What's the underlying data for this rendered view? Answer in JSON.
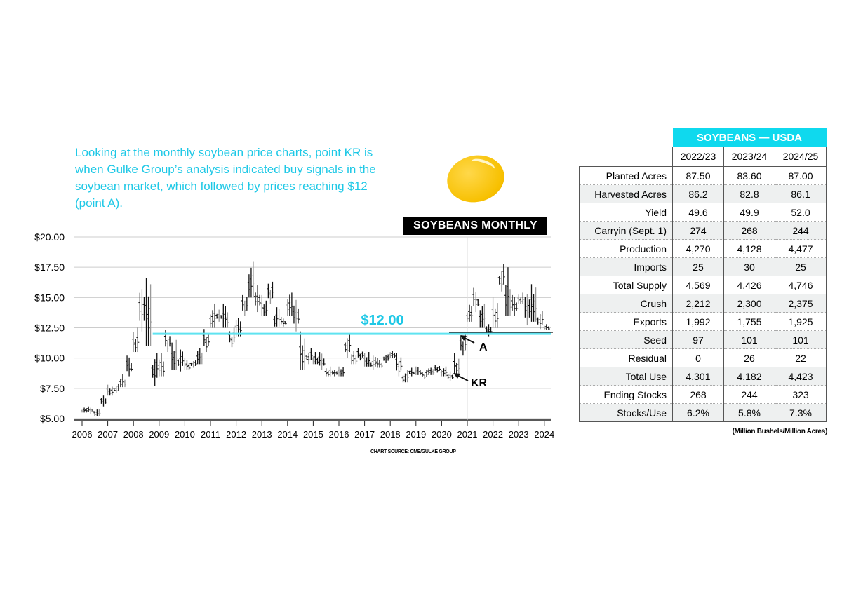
{
  "intro_text": "Looking at the monthly soybean price charts, point KR is when Gulke Group’s analysis indicated buy signals in the soybean market, which followed by prices reaching $12 (point A).",
  "chart_data": {
    "type": "ohlc-bar",
    "title": "SOYBEANS MONTHLY",
    "source": "CHART SOURCE: CME/GULKE GROUP",
    "ylim": [
      5,
      20
    ],
    "yticks": [
      20,
      17.5,
      15,
      12.5,
      10,
      7.5,
      5
    ],
    "ytick_labels": [
      "$20.00",
      "$17.50",
      "$15.00",
      "$12.50",
      "$10.00",
      "$7.50",
      "$5.00"
    ],
    "xlim": [
      2005.7,
      2024.3
    ],
    "xticks": [
      "2006",
      "2007",
      "2008",
      "2009",
      "2010",
      "2011",
      "2012",
      "2013",
      "2014",
      "2015",
      "2016",
      "2017",
      "2018",
      "2019",
      "2020",
      "2021",
      "2022",
      "2023",
      "2024"
    ],
    "grid": true,
    "reference_line": {
      "value": 12,
      "label": "$12.00",
      "color": "#5fe3f0"
    },
    "annotations": [
      {
        "label": "A",
        "x": 2020.9,
        "y": 12.0
      },
      {
        "label": "KR",
        "x": 2020.6,
        "y": 8.6
      }
    ],
    "quarterly_high_low": [
      [
        5.9,
        5.5
      ],
      [
        6.0,
        5.4
      ],
      [
        5.8,
        5.2
      ],
      [
        6.9,
        6.0
      ],
      [
        7.8,
        6.9
      ],
      [
        7.9,
        7.1
      ],
      [
        8.7,
        7.6
      ],
      [
        10.2,
        8.5
      ],
      [
        12.5,
        10.5
      ],
      [
        15.7,
        12.2
      ],
      [
        16.6,
        11.0
      ],
      [
        10.4,
        7.7
      ],
      [
        10.4,
        8.5
      ],
      [
        12.3,
        10.5
      ],
      [
        11.5,
        9.0
      ],
      [
        10.7,
        8.9
      ],
      [
        10.0,
        9.0
      ],
      [
        9.8,
        9.2
      ],
      [
        10.8,
        9.5
      ],
      [
        12.4,
        10.5
      ],
      [
        14.5,
        12.5
      ],
      [
        14.0,
        13.0
      ],
      [
        14.5,
        12.5
      ],
      [
        12.5,
        10.9
      ],
      [
        13.3,
        11.8
      ],
      [
        15.2,
        13.5
      ],
      [
        18.0,
        15.0
      ],
      [
        16.0,
        13.8
      ],
      [
        15.2,
        13.5
      ],
      [
        16.3,
        14.5
      ],
      [
        14.2,
        12.6
      ],
      [
        13.4,
        12.6
      ],
      [
        15.4,
        13.5
      ],
      [
        14.8,
        12.2
      ],
      [
        12.2,
        9.0
      ],
      [
        10.8,
        9.5
      ],
      [
        10.5,
        9.5
      ],
      [
        10.5,
        9.0
      ],
      [
        9.3,
        8.5
      ],
      [
        9.0,
        8.5
      ],
      [
        9.3,
        8.5
      ],
      [
        12.0,
        10.0
      ],
      [
        10.6,
        9.5
      ],
      [
        10.8,
        9.8
      ],
      [
        10.5,
        9.3
      ],
      [
        10.2,
        9.0
      ],
      [
        10.0,
        9.2
      ],
      [
        10.3,
        9.6
      ],
      [
        10.6,
        10.0
      ],
      [
        10.4,
        8.5
      ],
      [
        9.0,
        8.0
      ],
      [
        9.2,
        8.5
      ],
      [
        9.3,
        8.6
      ],
      [
        9.0,
        8.3
      ],
      [
        9.2,
        8.6
      ],
      [
        9.4,
        8.8
      ],
      [
        9.3,
        8.5
      ],
      [
        8.9,
        8.1
      ],
      [
        10.4,
        8.7
      ],
      [
        12.0,
        10.2
      ],
      [
        14.4,
        13.0
      ],
      [
        15.8,
        13.8
      ],
      [
        14.5,
        12.5
      ],
      [
        12.8,
        11.8
      ],
      [
        15.0,
        12.5
      ],
      [
        17.8,
        15.5
      ],
      [
        17.5,
        13.5
      ],
      [
        15.2,
        13.5
      ],
      [
        15.4,
        14.5
      ],
      [
        15.3,
        12.7
      ],
      [
        16.1,
        13.0
      ],
      [
        13.9,
        12.4
      ],
      [
        12.8,
        12.3
      ]
    ]
  },
  "table": {
    "title": "SOYBEANS — USDA",
    "columns": [
      "2022/23",
      "2023/24",
      "2024/25"
    ],
    "rows": [
      {
        "label": "Planted Acres",
        "values": [
          "87.50",
          "83.60",
          "87.00"
        ]
      },
      {
        "label": "Harvested Acres",
        "values": [
          "86.2",
          "82.8",
          "86.1"
        ]
      },
      {
        "label": "Yield",
        "values": [
          "49.6",
          "49.9",
          "52.0"
        ]
      },
      {
        "label": "Carryin (Sept. 1)",
        "values": [
          "274",
          "268",
          "244"
        ]
      },
      {
        "label": "Production",
        "values": [
          "4,270",
          "4,128",
          "4,477"
        ]
      },
      {
        "label": "Imports",
        "values": [
          "25",
          "30",
          "25"
        ]
      },
      {
        "label": "Total Supply",
        "values": [
          "4,569",
          "4,426",
          "4,746"
        ]
      },
      {
        "label": "Crush",
        "values": [
          "2,212",
          "2,300",
          "2,375"
        ]
      },
      {
        "label": "Exports",
        "values": [
          "1,992",
          "1,755",
          "1,925"
        ]
      },
      {
        "label": "Seed",
        "values": [
          "97",
          "101",
          "101"
        ]
      },
      {
        "label": "Residual",
        "values": [
          "0",
          "26",
          "22"
        ]
      },
      {
        "label": "Total Use",
        "values": [
          "4,301",
          "4,182",
          "4,423"
        ]
      },
      {
        "label": "Ending Stocks",
        "values": [
          "268",
          "244",
          "323"
        ]
      },
      {
        "label": "Stocks/Use",
        "values": [
          "6.2%",
          "5.8%",
          "7.3%"
        ]
      }
    ],
    "footnote": "(Million Bushels/Million Acres)",
    "header_color": "#0fd9ee"
  }
}
